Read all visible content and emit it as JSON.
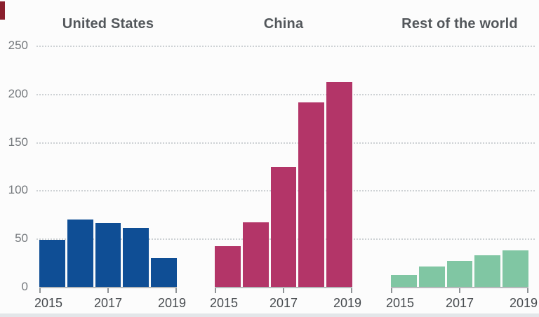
{
  "meta": {
    "background_color": "#fcfcfc",
    "brand_tab_color": "#8a1f2d",
    "bottom_band_color": "#e3e6e9",
    "gridline_color": "#cdd1d4",
    "axis_line_color": "#b7babc"
  },
  "y_axis": {
    "tick_labels": [
      "250",
      "200",
      "150",
      "100",
      "50",
      "0"
    ]
  },
  "x_axis": {
    "tick_labels": [
      "2015",
      "2017",
      "2019"
    ]
  },
  "panels": [
    {
      "title": "United States",
      "color": "#0f4e95",
      "values": [
        49,
        70,
        66,
        61,
        30
      ]
    },
    {
      "title": "China",
      "color": "#b33568",
      "values": [
        42,
        67,
        124,
        191,
        212
      ]
    },
    {
      "title": "Rest of the world",
      "color": "#80c6a3",
      "values": [
        12,
        21,
        27,
        33,
        38
      ]
    }
  ],
  "chart_data": {
    "type": "bar",
    "layout": "small_multiples",
    "categories": [
      "2015",
      "2016",
      "2017",
      "2018",
      "2019"
    ],
    "series": [
      {
        "name": "United States",
        "color": "#0f4e95",
        "values": [
          49,
          70,
          66,
          61,
          30
        ]
      },
      {
        "name": "China",
        "color": "#b33568",
        "values": [
          42,
          67,
          124,
          191,
          212
        ]
      },
      {
        "name": "Rest of the world",
        "color": "#80c6a3",
        "values": [
          12,
          21,
          27,
          33,
          38
        ]
      }
    ],
    "ylim": [
      0,
      250
    ],
    "y_ticks": [
      0,
      50,
      100,
      150,
      200,
      250
    ],
    "grid": "horizontal_dotted",
    "x_shown_tick_labels": [
      "2015",
      "2017",
      "2019"
    ],
    "legend_position": "none_panel_titles_used"
  }
}
